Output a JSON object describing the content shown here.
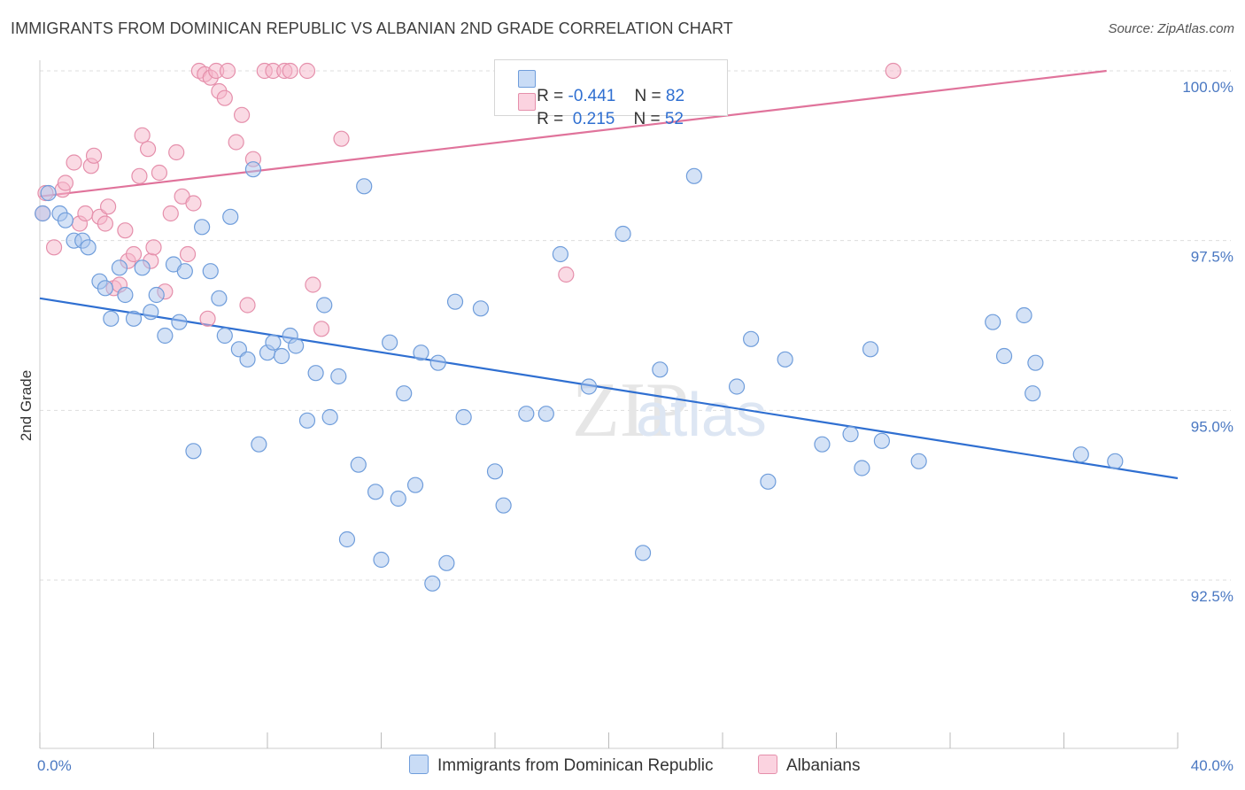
{
  "header": {
    "title": "IMMIGRANTS FROM DOMINICAN REPUBLIC VS ALBANIAN 2ND GRADE CORRELATION CHART",
    "source": "Source: ZipAtlas.com"
  },
  "legend": {
    "rows": [
      {
        "r_label": "R = ",
        "r_value": "-0.441",
        "n_label": "N = ",
        "n_value": "82",
        "color": "#a9c6ee"
      },
      {
        "r_label": "R = ",
        "r_value": " 0.215",
        "n_label": "N = ",
        "n_value": "52",
        "color": "#f5b6ca"
      }
    ]
  },
  "bottom_legend": {
    "series1": "Immigrants from Dominican Republic",
    "series2": "Albanians"
  },
  "colors": {
    "blue_fill": "#a9c6ee",
    "blue_stroke": "#6f9ddb",
    "blue_line": "#2f6fd1",
    "pink_fill": "#f5b6ca",
    "pink_stroke": "#e58fab",
    "pink_line": "#e0739b",
    "grid": "#dddddd",
    "tick": "#4a78c2"
  },
  "chart_data": {
    "type": "scatter",
    "title": "IMMIGRANTS FROM DOMINICAN REPUBLIC VS ALBANIAN 2ND GRADE CORRELATION CHART",
    "xlabel": "",
    "ylabel": "2nd Grade",
    "xlim": [
      0,
      40
    ],
    "ylim": [
      90.0,
      100.5
    ],
    "x_tick_labels": [
      "0.0%",
      "40.0%"
    ],
    "y_ticks": [
      92.5,
      95.0,
      97.5,
      100.0
    ],
    "y_tick_labels": [
      "92.5%",
      "95.0%",
      "97.5%",
      "100.0%"
    ],
    "grid": true,
    "legend_position": "top-center",
    "watermark": "ZIPatlas",
    "series": [
      {
        "name": "Immigrants from Dominican Republic",
        "R": -0.441,
        "N": 82,
        "trendline": {
          "x": [
            0,
            40
          ],
          "y": [
            96.65,
            94.0
          ]
        },
        "points": [
          [
            0.1,
            97.9
          ],
          [
            0.3,
            98.2
          ],
          [
            0.7,
            97.9
          ],
          [
            0.9,
            97.8
          ],
          [
            1.2,
            97.5
          ],
          [
            1.5,
            97.5
          ],
          [
            1.7,
            97.4
          ],
          [
            2.1,
            96.9
          ],
          [
            2.3,
            96.8
          ],
          [
            2.5,
            96.35
          ],
          [
            2.8,
            97.1
          ],
          [
            3.0,
            96.7
          ],
          [
            3.3,
            96.35
          ],
          [
            3.6,
            97.1
          ],
          [
            3.9,
            96.45
          ],
          [
            4.1,
            96.7
          ],
          [
            4.4,
            96.1
          ],
          [
            4.7,
            97.15
          ],
          [
            4.9,
            96.3
          ],
          [
            5.1,
            97.05
          ],
          [
            5.4,
            94.4
          ],
          [
            5.7,
            97.7
          ],
          [
            6.0,
            97.05
          ],
          [
            6.3,
            96.65
          ],
          [
            6.5,
            96.1
          ],
          [
            6.7,
            97.85
          ],
          [
            7.0,
            95.9
          ],
          [
            7.3,
            95.75
          ],
          [
            7.5,
            98.55
          ],
          [
            7.7,
            94.5
          ],
          [
            8.0,
            95.85
          ],
          [
            8.2,
            96.0
          ],
          [
            8.5,
            95.8
          ],
          [
            8.8,
            96.1
          ],
          [
            9.0,
            95.95
          ],
          [
            9.4,
            94.85
          ],
          [
            9.7,
            95.55
          ],
          [
            10.0,
            96.55
          ],
          [
            10.2,
            94.9
          ],
          [
            10.5,
            95.5
          ],
          [
            10.8,
            93.1
          ],
          [
            11.2,
            94.2
          ],
          [
            11.4,
            98.3
          ],
          [
            11.8,
            93.8
          ],
          [
            12.0,
            92.8
          ],
          [
            12.3,
            96.0
          ],
          [
            12.6,
            93.7
          ],
          [
            12.8,
            95.25
          ],
          [
            13.2,
            93.9
          ],
          [
            13.4,
            95.85
          ],
          [
            13.8,
            92.45
          ],
          [
            14.0,
            95.7
          ],
          [
            14.3,
            92.75
          ],
          [
            14.6,
            96.6
          ],
          [
            14.9,
            94.9
          ],
          [
            15.5,
            96.5
          ],
          [
            16.0,
            94.1
          ],
          [
            16.3,
            93.6
          ],
          [
            17.1,
            94.95
          ],
          [
            17.8,
            94.95
          ],
          [
            18.3,
            97.3
          ],
          [
            19.3,
            95.35
          ],
          [
            20.5,
            97.6
          ],
          [
            21.2,
            92.9
          ],
          [
            21.8,
            95.6
          ],
          [
            23.0,
            98.45
          ],
          [
            24.5,
            95.35
          ],
          [
            25.0,
            96.05
          ],
          [
            25.6,
            93.95
          ],
          [
            26.2,
            95.75
          ],
          [
            27.5,
            94.5
          ],
          [
            28.5,
            94.65
          ],
          [
            28.9,
            94.15
          ],
          [
            29.2,
            95.9
          ],
          [
            29.6,
            94.55
          ],
          [
            30.9,
            94.25
          ],
          [
            33.5,
            96.3
          ],
          [
            33.9,
            95.8
          ],
          [
            34.6,
            96.4
          ],
          [
            34.9,
            95.25
          ],
          [
            35.0,
            95.7
          ],
          [
            36.6,
            94.35
          ],
          [
            37.8,
            94.25
          ]
        ]
      },
      {
        "name": "Albanians",
        "R": 0.215,
        "N": 52,
        "trendline": {
          "x": [
            0,
            37.5
          ],
          "y": [
            98.15,
            100.0
          ]
        },
        "points": [
          [
            0.1,
            97.9
          ],
          [
            0.2,
            98.2
          ],
          [
            0.5,
            97.4
          ],
          [
            0.8,
            98.25
          ],
          [
            0.9,
            98.35
          ],
          [
            1.2,
            98.65
          ],
          [
            1.4,
            97.75
          ],
          [
            1.6,
            97.9
          ],
          [
            1.8,
            98.6
          ],
          [
            1.9,
            98.75
          ],
          [
            2.1,
            97.85
          ],
          [
            2.3,
            97.75
          ],
          [
            2.4,
            98.0
          ],
          [
            2.6,
            96.8
          ],
          [
            2.8,
            96.85
          ],
          [
            3.0,
            97.65
          ],
          [
            3.1,
            97.2
          ],
          [
            3.3,
            97.3
          ],
          [
            3.5,
            98.45
          ],
          [
            3.6,
            99.05
          ],
          [
            3.8,
            98.85
          ],
          [
            3.9,
            97.2
          ],
          [
            4.0,
            97.4
          ],
          [
            4.2,
            98.5
          ],
          [
            4.4,
            96.75
          ],
          [
            4.6,
            97.9
          ],
          [
            4.8,
            98.8
          ],
          [
            5.0,
            98.15
          ],
          [
            5.2,
            97.3
          ],
          [
            5.4,
            98.05
          ],
          [
            5.6,
            100.0
          ],
          [
            5.8,
            99.95
          ],
          [
            5.9,
            96.35
          ],
          [
            6.0,
            99.9
          ],
          [
            6.2,
            100.0
          ],
          [
            6.3,
            99.7
          ],
          [
            6.5,
            99.6
          ],
          [
            6.6,
            100.0
          ],
          [
            6.9,
            98.95
          ],
          [
            7.1,
            99.35
          ],
          [
            7.3,
            96.55
          ],
          [
            7.5,
            98.7
          ],
          [
            7.9,
            100.0
          ],
          [
            8.2,
            100.0
          ],
          [
            8.6,
            100.0
          ],
          [
            8.8,
            100.0
          ],
          [
            9.4,
            100.0
          ],
          [
            9.6,
            96.85
          ],
          [
            9.9,
            96.2
          ],
          [
            10.6,
            99.0
          ],
          [
            18.5,
            97.0
          ],
          [
            30.0,
            100.0
          ]
        ]
      }
    ]
  }
}
